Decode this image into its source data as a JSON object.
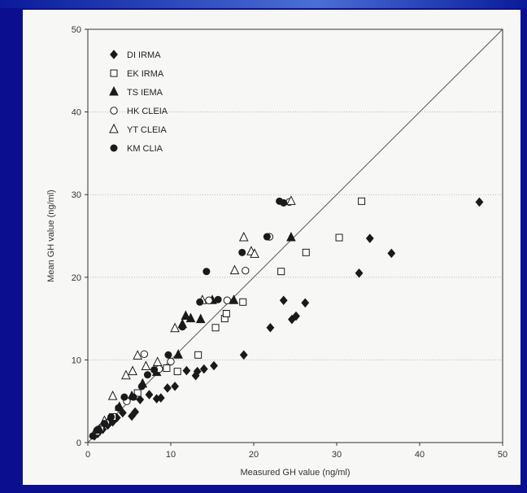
{
  "chart_data": {
    "type": "scatter",
    "title": "",
    "xlabel": "Measured GH value (ng/ml)",
    "ylabel": "Mean GH value (ng/ml)",
    "xlim": [
      0,
      50
    ],
    "ylim": [
      0,
      50
    ],
    "xticks": [
      0,
      10,
      20,
      30,
      40,
      50
    ],
    "yticks": [
      0,
      10,
      20,
      30,
      40,
      50
    ],
    "grid": "horizontal dotted",
    "legend_position": "top-left",
    "reference_line": "y = x",
    "series": [
      {
        "name": "DI IRMA",
        "marker": "diamond-filled",
        "points": [
          [
            0.8,
            0.8
          ],
          [
            1.2,
            1.1
          ],
          [
            1.8,
            1.6
          ],
          [
            2.4,
            2.1
          ],
          [
            3.0,
            2.5
          ],
          [
            3.5,
            3.0
          ],
          [
            4.2,
            3.6
          ],
          [
            5.3,
            3.2
          ],
          [
            5.7,
            3.7
          ],
          [
            6.3,
            5.2
          ],
          [
            7.4,
            5.8
          ],
          [
            8.3,
            5.3
          ],
          [
            8.8,
            5.4
          ],
          [
            9.6,
            6.6
          ],
          [
            10.5,
            6.8
          ],
          [
            11.9,
            8.7
          ],
          [
            13.0,
            8.1
          ],
          [
            13.2,
            8.6
          ],
          [
            14.0,
            8.9
          ],
          [
            15.2,
            9.3
          ],
          [
            18.8,
            10.6
          ],
          [
            22.0,
            13.9
          ],
          [
            23.6,
            17.2
          ],
          [
            24.6,
            14.9
          ],
          [
            25.1,
            15.3
          ],
          [
            26.2,
            16.9
          ],
          [
            32.7,
            20.5
          ],
          [
            34.0,
            24.7
          ],
          [
            36.6,
            22.9
          ],
          [
            47.2,
            29.1
          ]
        ]
      },
      {
        "name": "EK IRMA",
        "marker": "square-open",
        "points": [
          [
            1.5,
            1.6
          ],
          [
            3.0,
            3.1
          ],
          [
            6.0,
            6.0
          ],
          [
            9.5,
            9.0
          ],
          [
            10.8,
            8.6
          ],
          [
            13.3,
            10.6
          ],
          [
            15.4,
            13.9
          ],
          [
            16.5,
            15.0
          ],
          [
            16.7,
            15.6
          ],
          [
            18.7,
            17.0
          ],
          [
            23.3,
            20.7
          ],
          [
            26.3,
            23.0
          ],
          [
            30.3,
            24.8
          ],
          [
            33.0,
            29.2
          ]
        ]
      },
      {
        "name": "TS IEMA",
        "marker": "triangle-filled",
        "points": [
          [
            1.4,
            1.6
          ],
          [
            2.6,
            2.8
          ],
          [
            3.8,
            4.3
          ],
          [
            5.3,
            5.6
          ],
          [
            6.6,
            7.1
          ],
          [
            8.3,
            8.5
          ],
          [
            10.9,
            10.6
          ],
          [
            11.4,
            14.3
          ],
          [
            11.8,
            15.3
          ],
          [
            12.4,
            15.0
          ],
          [
            13.6,
            14.9
          ],
          [
            15.0,
            17.2
          ],
          [
            17.6,
            17.2
          ],
          [
            24.5,
            24.8
          ]
        ]
      },
      {
        "name": "HK CLEIA",
        "marker": "circle-open",
        "points": [
          [
            1.0,
            1.2
          ],
          [
            2.2,
            2.4
          ],
          [
            4.7,
            5.0
          ],
          [
            6.8,
            10.7
          ],
          [
            8.6,
            8.9
          ],
          [
            10.0,
            9.8
          ],
          [
            14.6,
            17.2
          ],
          [
            16.8,
            17.2
          ],
          [
            19.0,
            20.8
          ],
          [
            21.9,
            24.9
          ],
          [
            24.3,
            29.1
          ]
        ]
      },
      {
        "name": "YT CLEIA",
        "marker": "triangle-open",
        "points": [
          [
            1.0,
            1.3
          ],
          [
            2.0,
            2.6
          ],
          [
            3.0,
            5.6
          ],
          [
            4.6,
            8.1
          ],
          [
            5.4,
            8.6
          ],
          [
            6.0,
            10.5
          ],
          [
            7.0,
            9.2
          ],
          [
            8.4,
            9.7
          ],
          [
            10.5,
            13.8
          ],
          [
            13.8,
            17.2
          ],
          [
            17.7,
            20.8
          ],
          [
            18.8,
            24.8
          ],
          [
            19.7,
            23.1
          ],
          [
            20.1,
            22.8
          ],
          [
            24.5,
            29.2
          ]
        ]
      },
      {
        "name": "KM CLIA",
        "marker": "circle-filled",
        "points": [
          [
            0.6,
            0.8
          ],
          [
            1.1,
            1.5
          ],
          [
            2.0,
            2.3
          ],
          [
            2.8,
            3.1
          ],
          [
            3.7,
            4.2
          ],
          [
            4.4,
            5.5
          ],
          [
            5.5,
            5.5
          ],
          [
            6.5,
            6.8
          ],
          [
            7.2,
            8.2
          ],
          [
            8.0,
            8.8
          ],
          [
            9.7,
            10.6
          ],
          [
            11.4,
            14.0
          ],
          [
            13.5,
            17.0
          ],
          [
            14.3,
            20.7
          ],
          [
            15.7,
            17.3
          ],
          [
            18.6,
            23.0
          ],
          [
            21.6,
            24.9
          ],
          [
            23.1,
            29.2
          ],
          [
            23.6,
            29.0
          ]
        ]
      }
    ],
    "colors": {
      "marker": "#1a1a1a",
      "axis": "#333333",
      "grid": "#b9b9b9",
      "background": "#f7f7f5"
    }
  }
}
